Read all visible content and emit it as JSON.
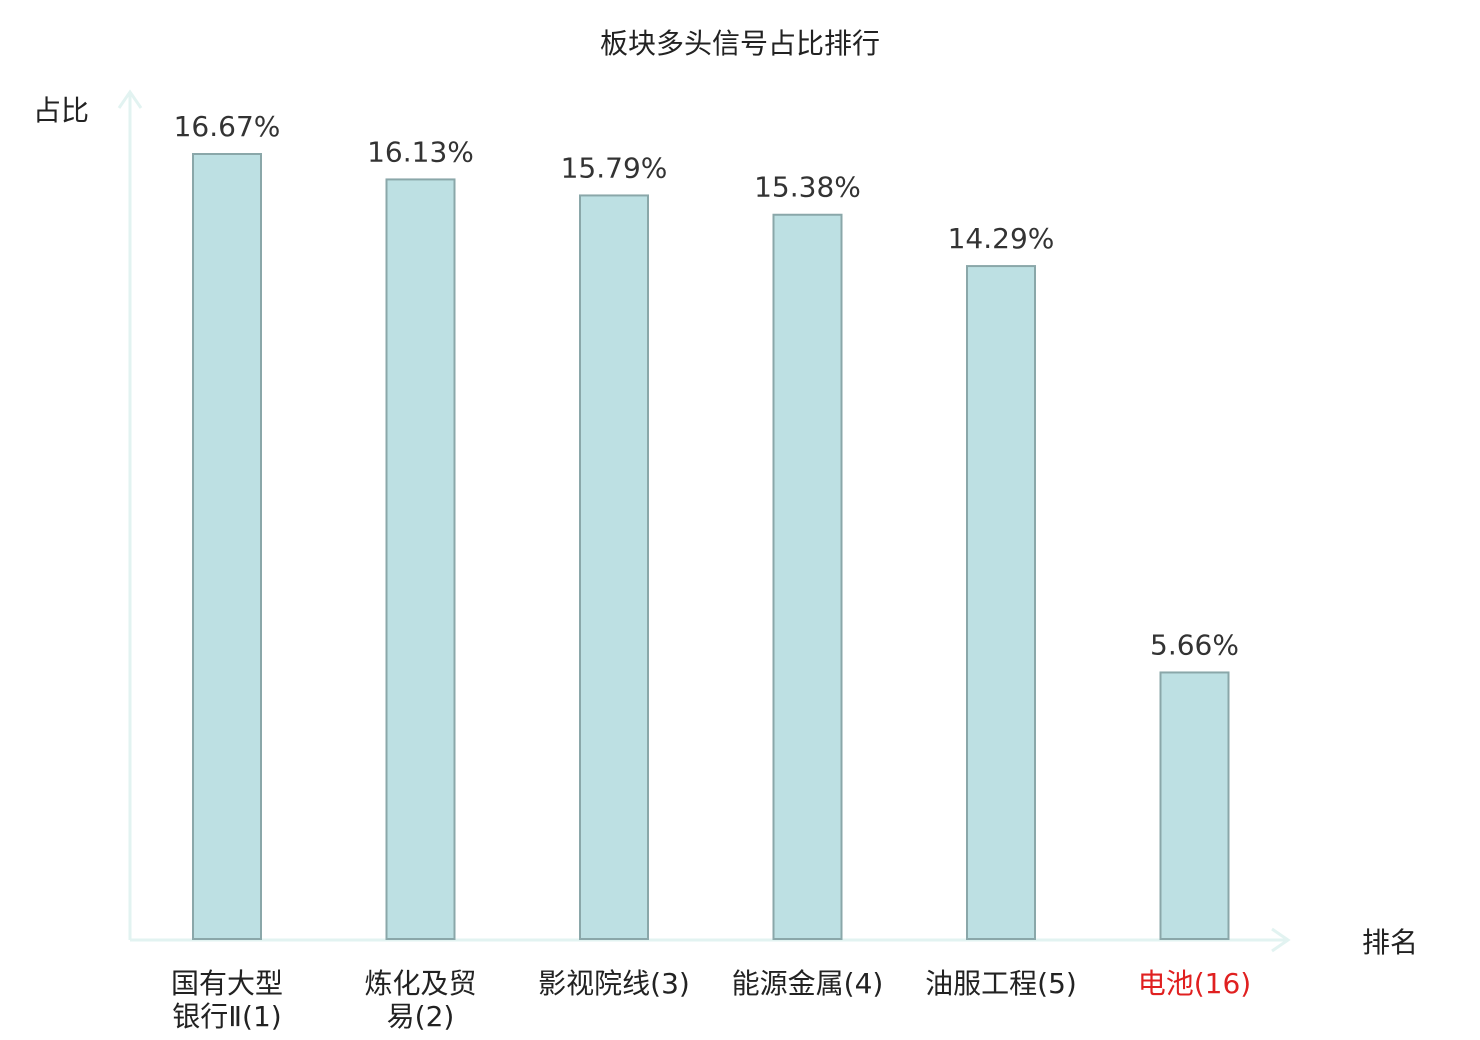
{
  "chart_data": {
    "type": "bar",
    "title": "板块多头信号占比排行",
    "xlabel": "排名",
    "ylabel": "占比",
    "categories": [
      {
        "lines": [
          "国有大型",
          "银行Ⅱ(1)"
        ],
        "highlight": false
      },
      {
        "lines": [
          "炼化及贸",
          "易(2)"
        ],
        "highlight": false
      },
      {
        "lines": [
          "影视院线(3)"
        ],
        "highlight": false
      },
      {
        "lines": [
          "能源金属(4)"
        ],
        "highlight": false
      },
      {
        "lines": [
          "油服工程(5)"
        ],
        "highlight": false
      },
      {
        "lines": [
          "电池(16)"
        ],
        "highlight": true
      }
    ],
    "values": [
      16.67,
      16.13,
      15.79,
      15.38,
      14.29,
      5.66
    ],
    "value_labels": [
      "16.67%",
      "16.13%",
      "15.79%",
      "15.38%",
      "14.29%",
      "5.66%"
    ],
    "ylim": [
      0,
      16.67
    ],
    "grid": false,
    "legend": "none",
    "colors": {
      "bar_fill": "#bde0e3",
      "bar_stroke": "#8aa7a9",
      "axis": "#e2f3f1",
      "text": "#222222",
      "highlight": "#e02020"
    }
  }
}
